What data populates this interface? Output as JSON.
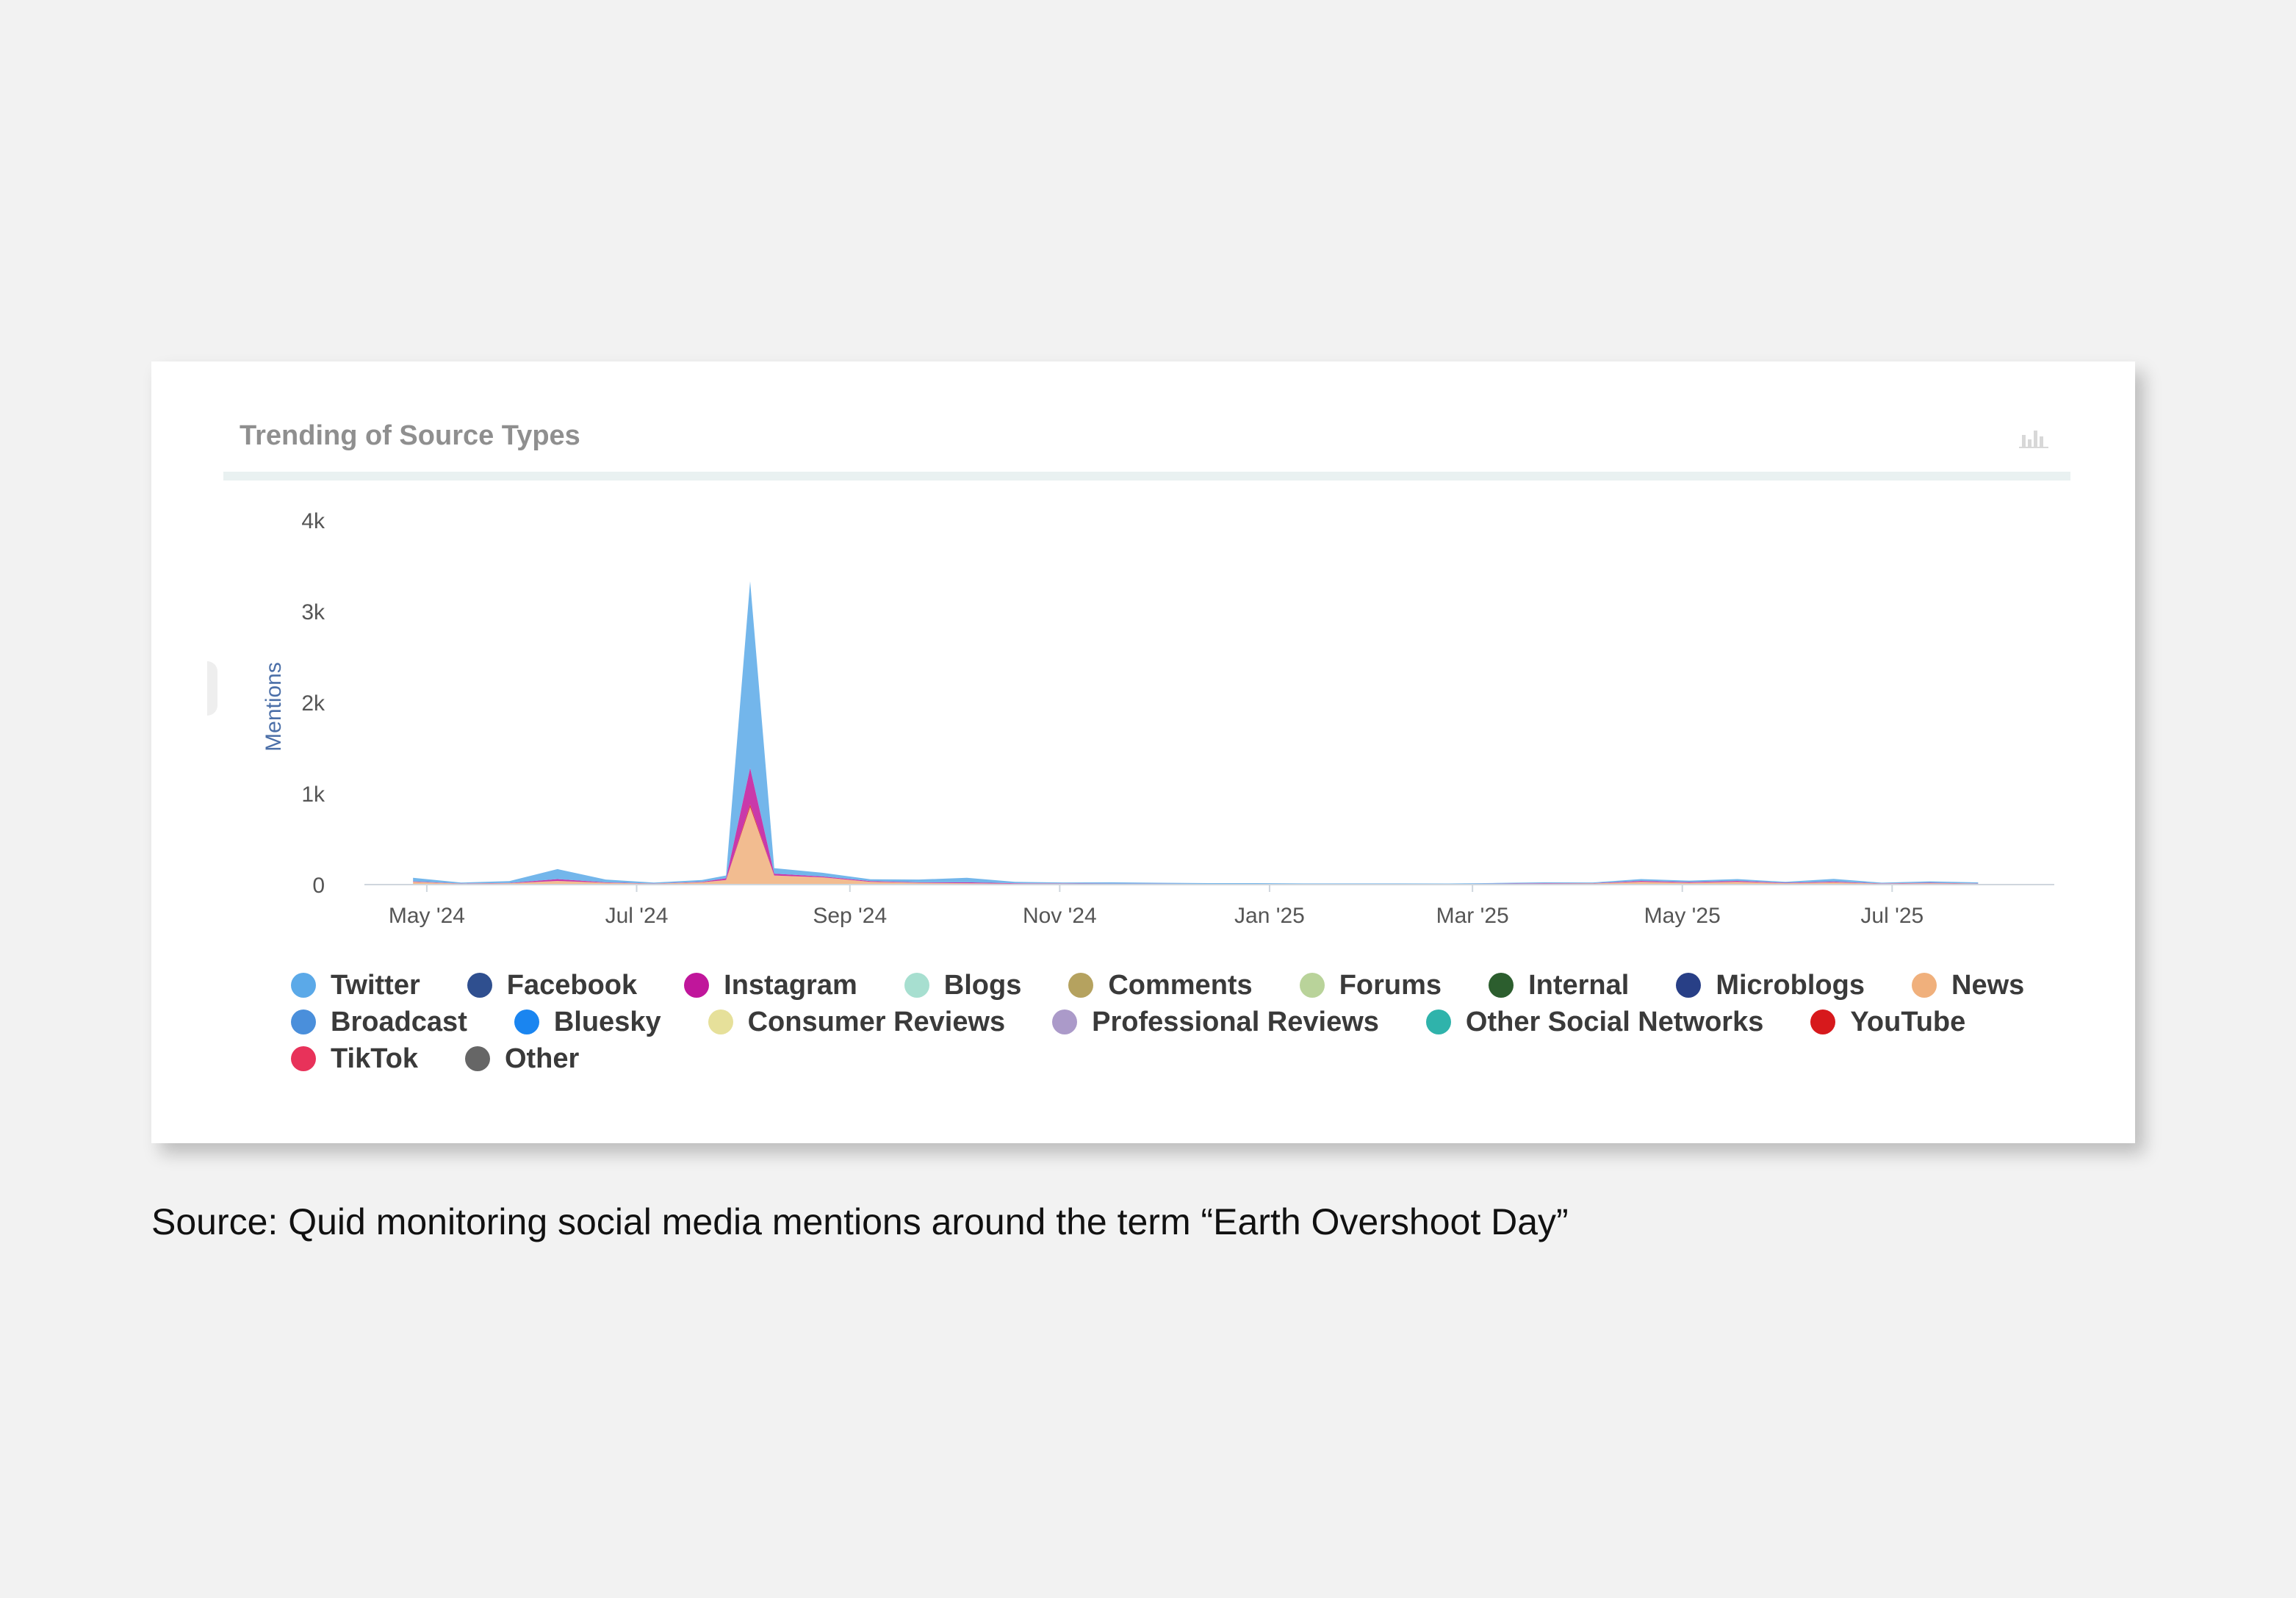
{
  "caption": "Source: Quid monitoring social media mentions around the term “Earth Overshoot Day”",
  "card": {
    "title": "Trending of Source Types",
    "icon": "bar-chart-icon"
  },
  "chart_data": {
    "type": "area",
    "title": "Trending of Source Types",
    "xlabel": "",
    "ylabel": "Mentions",
    "x_ticks": [
      "May '24",
      "Jul '24",
      "Sep '24",
      "Nov '24",
      "Jan '25",
      "Mar '25",
      "May '25",
      "Jul '25"
    ],
    "y_ticks": [
      "0",
      "1k",
      "2k",
      "3k",
      "4k"
    ],
    "ylim": [
      0,
      4000
    ],
    "stacked": true,
    "legend_position": "bottom",
    "x": [
      "2024-04-27",
      "2024-05-11",
      "2024-05-25",
      "2024-06-08",
      "2024-06-22",
      "2024-07-06",
      "2024-07-20",
      "2024-07-27",
      "2024-08-03",
      "2024-08-10",
      "2024-08-24",
      "2024-09-07",
      "2024-09-21",
      "2024-10-05",
      "2024-10-19",
      "2024-11-02",
      "2024-11-16",
      "2024-11-30",
      "2024-12-14",
      "2024-12-28",
      "2025-01-11",
      "2025-01-25",
      "2025-02-08",
      "2025-02-22",
      "2025-03-08",
      "2025-03-22",
      "2025-04-05",
      "2025-04-19",
      "2025-05-03",
      "2025-05-17",
      "2025-05-31",
      "2025-06-14",
      "2025-06-28",
      "2025-07-12",
      "2025-07-26"
    ],
    "series": [
      {
        "name": "News",
        "color": "#f0b07c",
        "values": [
          30,
          10,
          15,
          40,
          20,
          10,
          25,
          50,
          850,
          100,
          80,
          30,
          20,
          15,
          10,
          10,
          8,
          8,
          6,
          6,
          5,
          5,
          5,
          5,
          8,
          10,
          12,
          30,
          20,
          30,
          15,
          25,
          10,
          15,
          10
        ]
      },
      {
        "name": "YouTube",
        "color": "#d7191c",
        "values": [
          0,
          0,
          0,
          0,
          0,
          0,
          0,
          0,
          30,
          0,
          0,
          0,
          0,
          0,
          0,
          0,
          0,
          0,
          0,
          0,
          0,
          0,
          0,
          0,
          0,
          0,
          0,
          0,
          0,
          0,
          0,
          0,
          0,
          0,
          0
        ]
      },
      {
        "name": "Instagram",
        "color": "#c0169b",
        "values": [
          5,
          2,
          3,
          20,
          5,
          2,
          5,
          20,
          400,
          20,
          10,
          8,
          5,
          10,
          5,
          3,
          2,
          2,
          2,
          2,
          2,
          2,
          2,
          2,
          2,
          5,
          3,
          10,
          8,
          10,
          5,
          8,
          3,
          5,
          2
        ]
      },
      {
        "name": "Twitter",
        "color": "#5ba9e8",
        "values": [
          40,
          10,
          20,
          110,
          30,
          10,
          20,
          30,
          2050,
          60,
          40,
          20,
          30,
          50,
          15,
          10,
          15,
          10,
          8,
          8,
          6,
          6,
          6,
          5,
          8,
          10,
          8,
          20,
          15,
          20,
          10,
          30,
          8,
          15,
          12
        ]
      },
      {
        "name": "Facebook",
        "color": "#2f4f8f",
        "values": [
          0,
          0,
          0,
          0,
          0,
          0,
          0,
          0,
          0,
          0,
          0,
          0,
          0,
          0,
          0,
          0,
          0,
          0,
          0,
          0,
          0,
          0,
          0,
          0,
          0,
          0,
          0,
          0,
          0,
          0,
          0,
          0,
          0,
          0,
          0
        ]
      },
      {
        "name": "Blogs",
        "color": "#a7dfd0",
        "values": [
          0,
          0,
          0,
          0,
          0,
          0,
          0,
          0,
          0,
          0,
          0,
          0,
          0,
          0,
          0,
          0,
          0,
          0,
          0,
          0,
          0,
          0,
          0,
          0,
          0,
          0,
          0,
          0,
          0,
          0,
          0,
          0,
          0,
          0,
          0
        ]
      },
      {
        "name": "Comments",
        "color": "#b5a25f",
        "values": [
          0,
          0,
          0,
          0,
          0,
          0,
          0,
          0,
          0,
          0,
          0,
          0,
          0,
          0,
          0,
          0,
          0,
          0,
          0,
          0,
          0,
          0,
          0,
          0,
          0,
          0,
          0,
          0,
          0,
          0,
          0,
          0,
          0,
          0,
          0
        ]
      },
      {
        "name": "Forums",
        "color": "#b9d39a",
        "values": [
          0,
          0,
          0,
          0,
          0,
          0,
          0,
          0,
          0,
          0,
          0,
          0,
          0,
          0,
          0,
          0,
          0,
          0,
          0,
          0,
          0,
          0,
          0,
          0,
          0,
          0,
          0,
          0,
          0,
          0,
          0,
          0,
          0,
          0,
          0
        ]
      },
      {
        "name": "Internal",
        "color": "#2c5e2e",
        "values": [
          0,
          0,
          0,
          0,
          0,
          0,
          0,
          0,
          0,
          0,
          0,
          0,
          0,
          0,
          0,
          0,
          0,
          0,
          0,
          0,
          0,
          0,
          0,
          0,
          0,
          0,
          0,
          0,
          0,
          0,
          0,
          0,
          0,
          0,
          0
        ]
      },
      {
        "name": "Microblogs",
        "color": "#283f86",
        "values": [
          0,
          0,
          0,
          0,
          0,
          0,
          0,
          0,
          0,
          0,
          0,
          0,
          0,
          0,
          0,
          0,
          0,
          0,
          0,
          0,
          0,
          0,
          0,
          0,
          0,
          0,
          0,
          0,
          0,
          0,
          0,
          0,
          0,
          0,
          0
        ]
      },
      {
        "name": "Broadcast",
        "color": "#4a8fdb",
        "values": [
          0,
          0,
          0,
          0,
          0,
          0,
          0,
          0,
          0,
          0,
          0,
          0,
          0,
          0,
          0,
          0,
          0,
          0,
          0,
          0,
          0,
          0,
          0,
          0,
          0,
          0,
          0,
          0,
          0,
          0,
          0,
          0,
          0,
          0,
          0
        ]
      },
      {
        "name": "Bluesky",
        "color": "#1a85f0",
        "values": [
          0,
          0,
          0,
          0,
          0,
          0,
          0,
          0,
          0,
          0,
          0,
          0,
          0,
          0,
          0,
          0,
          0,
          0,
          0,
          0,
          0,
          0,
          0,
          0,
          0,
          0,
          0,
          0,
          0,
          0,
          0,
          0,
          0,
          0,
          0
        ]
      },
      {
        "name": "Consumer Reviews",
        "color": "#e6e09a",
        "values": [
          0,
          0,
          0,
          0,
          0,
          0,
          0,
          0,
          0,
          0,
          0,
          0,
          0,
          0,
          0,
          0,
          0,
          0,
          0,
          0,
          0,
          0,
          0,
          0,
          0,
          0,
          0,
          0,
          0,
          0,
          0,
          0,
          0,
          0,
          0
        ]
      },
      {
        "name": "Professional Reviews",
        "color": "#ab9ac9",
        "values": [
          0,
          0,
          0,
          0,
          0,
          0,
          0,
          0,
          0,
          0,
          0,
          0,
          0,
          0,
          0,
          0,
          0,
          0,
          0,
          0,
          0,
          0,
          0,
          0,
          0,
          0,
          0,
          0,
          0,
          0,
          0,
          0,
          0,
          0,
          0
        ]
      },
      {
        "name": "Other Social Networks",
        "color": "#2fb3ab",
        "values": [
          0,
          0,
          0,
          0,
          0,
          0,
          0,
          0,
          0,
          0,
          0,
          0,
          0,
          0,
          0,
          0,
          0,
          0,
          0,
          0,
          0,
          0,
          0,
          0,
          0,
          0,
          0,
          0,
          0,
          0,
          0,
          0,
          0,
          0,
          0
        ]
      },
      {
        "name": "TikTok",
        "color": "#e8325a",
        "values": [
          0,
          0,
          0,
          0,
          0,
          0,
          0,
          0,
          0,
          0,
          0,
          0,
          0,
          0,
          0,
          0,
          0,
          0,
          0,
          0,
          0,
          0,
          0,
          0,
          0,
          0,
          0,
          0,
          0,
          0,
          0,
          0,
          0,
          0,
          0
        ]
      },
      {
        "name": "Other",
        "color": "#666666",
        "values": [
          0,
          0,
          0,
          0,
          0,
          0,
          0,
          0,
          0,
          0,
          0,
          0,
          0,
          0,
          0,
          0,
          0,
          0,
          0,
          0,
          0,
          0,
          0,
          0,
          0,
          0,
          0,
          0,
          0,
          0,
          0,
          0,
          0,
          0,
          0
        ]
      }
    ],
    "legend": [
      {
        "name": "Twitter",
        "color": "#5ba9e8"
      },
      {
        "name": "Facebook",
        "color": "#2f4f8f"
      },
      {
        "name": "Instagram",
        "color": "#c0169b"
      },
      {
        "name": "Blogs",
        "color": "#a7dfd0"
      },
      {
        "name": "Comments",
        "color": "#b5a25f"
      },
      {
        "name": "Forums",
        "color": "#b9d39a"
      },
      {
        "name": "Internal",
        "color": "#2c5e2e"
      },
      {
        "name": "Microblogs",
        "color": "#283f86"
      },
      {
        "name": "News",
        "color": "#f0b07c"
      },
      {
        "name": "Broadcast",
        "color": "#4a8fdb"
      },
      {
        "name": "Bluesky",
        "color": "#1a85f0"
      },
      {
        "name": "Consumer Reviews",
        "color": "#e6e09a"
      },
      {
        "name": "Professional Reviews",
        "color": "#ab9ac9"
      },
      {
        "name": "Other Social Networks",
        "color": "#2fb3ab"
      },
      {
        "name": "YouTube",
        "color": "#d7191c"
      },
      {
        "name": "TikTok",
        "color": "#e8325a"
      },
      {
        "name": "Other",
        "color": "#666666"
      }
    ]
  }
}
